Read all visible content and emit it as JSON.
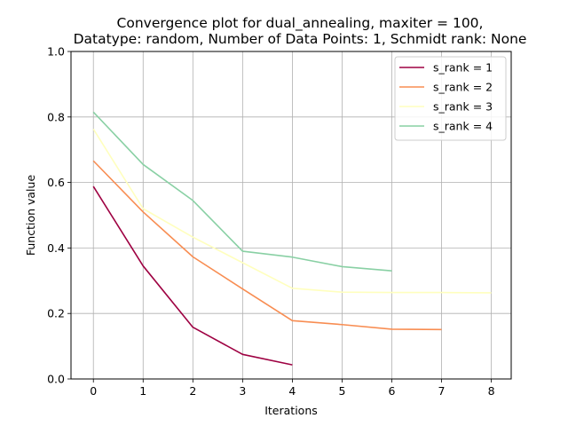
{
  "chart_data": {
    "type": "line",
    "title": "Convergence plot for dual_annealing, maxiter = 100,",
    "subtitle": "Datatype: random, Number of Data Points: 1, Schmidt rank: None",
    "xlabel": "Iterations",
    "ylabel": "Function value",
    "xlim": [
      -0.45,
      8.4
    ],
    "ylim": [
      0,
      1.0
    ],
    "xticks": [
      0,
      1,
      2,
      3,
      4,
      5,
      6,
      7,
      8
    ],
    "yticks": [
      0.0,
      0.2,
      0.4,
      0.6,
      0.8,
      1.0
    ],
    "grid": true,
    "legend_position": "top-right",
    "series": [
      {
        "name": "s_rank = 1",
        "color": "#9e0142",
        "x": [
          0,
          1,
          2,
          3,
          4
        ],
        "y": [
          0.588,
          0.345,
          0.158,
          0.075,
          0.043
        ]
      },
      {
        "name": "s_rank = 2",
        "color": "#f88d52",
        "x": [
          0,
          1,
          2,
          3,
          4,
          5,
          6,
          7
        ],
        "y": [
          0.666,
          0.51,
          0.373,
          0.275,
          0.178,
          0.166,
          0.152,
          0.151
        ]
      },
      {
        "name": "s_rank = 3",
        "color": "#ffffbe",
        "x": [
          0,
          1,
          2,
          3,
          4,
          5,
          6,
          7,
          8
        ],
        "y": [
          0.763,
          0.52,
          0.433,
          0.355,
          0.277,
          0.265,
          0.264,
          0.264,
          0.263
        ]
      },
      {
        "name": "s_rank = 4",
        "color": "#89d0a4",
        "x": [
          0,
          1,
          2,
          3,
          4,
          5,
          6
        ],
        "y": [
          0.815,
          0.655,
          0.545,
          0.39,
          0.372,
          0.343,
          0.33
        ]
      }
    ]
  }
}
